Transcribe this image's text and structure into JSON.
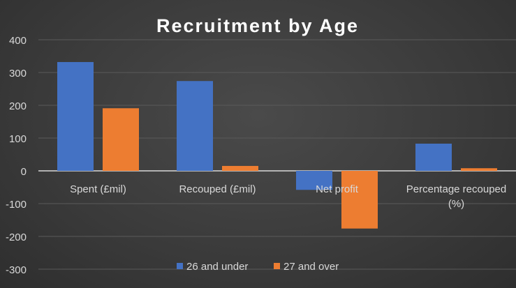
{
  "chart_data": {
    "type": "bar",
    "title": "Recruitment by Age",
    "categories": [
      "Spent (£mil)",
      "Recouped (£mil)",
      "Net profit",
      "Percentage recouped (%)"
    ],
    "series": [
      {
        "name": "26 and under",
        "values": [
          332,
          274,
          -58,
          83
        ],
        "color": "#4472C4"
      },
      {
        "name": "27 and over",
        "values": [
          191,
          15,
          -176,
          8
        ],
        "color": "#ED7D31"
      }
    ],
    "ylim": [
      -300,
      400
    ],
    "yticks": [
      400,
      300,
      200,
      100,
      0,
      -100,
      -200,
      -300
    ],
    "grid": true,
    "legend": "bottom",
    "xlabel": "",
    "ylabel": ""
  }
}
